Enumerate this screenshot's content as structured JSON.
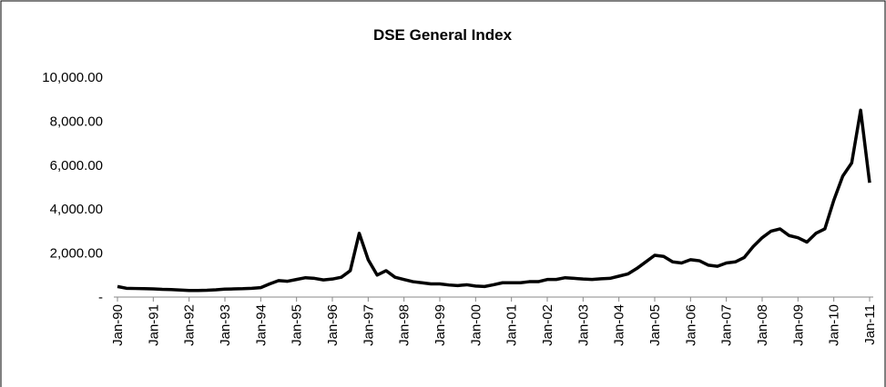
{
  "chart_data": {
    "type": "line",
    "title": "DSE General Index",
    "categories": [
      "Jan-90",
      null,
      null,
      null,
      "Jan-91",
      null,
      null,
      null,
      "Jan-92",
      null,
      null,
      null,
      "Jan-93",
      null,
      null,
      null,
      "Jan-94",
      null,
      null,
      null,
      "Jan-95",
      null,
      null,
      null,
      "Jan-96",
      null,
      null,
      null,
      "Jan-97",
      null,
      null,
      null,
      "Jan-98",
      null,
      null,
      null,
      "Jan-99",
      null,
      null,
      null,
      "Jan-00",
      null,
      null,
      null,
      "Jan-01",
      null,
      null,
      null,
      "Jan-02",
      null,
      null,
      null,
      "Jan-03",
      null,
      null,
      null,
      "Jan-04",
      null,
      null,
      null,
      "Jan-05",
      null,
      null,
      null,
      "Jan-06",
      null,
      null,
      null,
      "Jan-07",
      null,
      null,
      null,
      "Jan-08",
      null,
      null,
      null,
      "Jan-09",
      null,
      null,
      null,
      "Jan-10",
      null,
      null,
      null,
      "Jan-11"
    ],
    "series": [
      {
        "name": "DSE General Index",
        "color": "#000000",
        "values": [
          480,
          400,
          390,
          380,
          370,
          350,
          340,
          320,
          300,
          300,
          310,
          330,
          360,
          370,
          380,
          400,
          430,
          600,
          750,
          720,
          800,
          880,
          850,
          780,
          820,
          900,
          1200,
          2900,
          1700,
          1000,
          1200,
          900,
          800,
          700,
          650,
          600,
          600,
          550,
          520,
          560,
          500,
          480,
          560,
          650,
          650,
          650,
          700,
          700,
          800,
          800,
          880,
          850,
          820,
          800,
          830,
          850,
          950,
          1050,
          1300,
          1600,
          1900,
          1850,
          1600,
          1550,
          1700,
          1650,
          1450,
          1400,
          1550,
          1600,
          1800,
          2300,
          2700,
          3000,
          3100,
          2800,
          2700,
          2500,
          2900,
          3100,
          4400,
          5500,
          6100,
          8500,
          5200
        ]
      }
    ],
    "ylim": [
      0,
      10000
    ],
    "yticks": [
      {
        "value": 0,
        "label": "-"
      },
      {
        "value": 2000,
        "label": "2,000.00"
      },
      {
        "value": 4000,
        "label": "4,000.00"
      },
      {
        "value": 6000,
        "label": "6,000.00"
      },
      {
        "value": 8000,
        "label": "8,000.00"
      },
      {
        "value": 10000,
        "label": "10,000.00"
      }
    ]
  }
}
